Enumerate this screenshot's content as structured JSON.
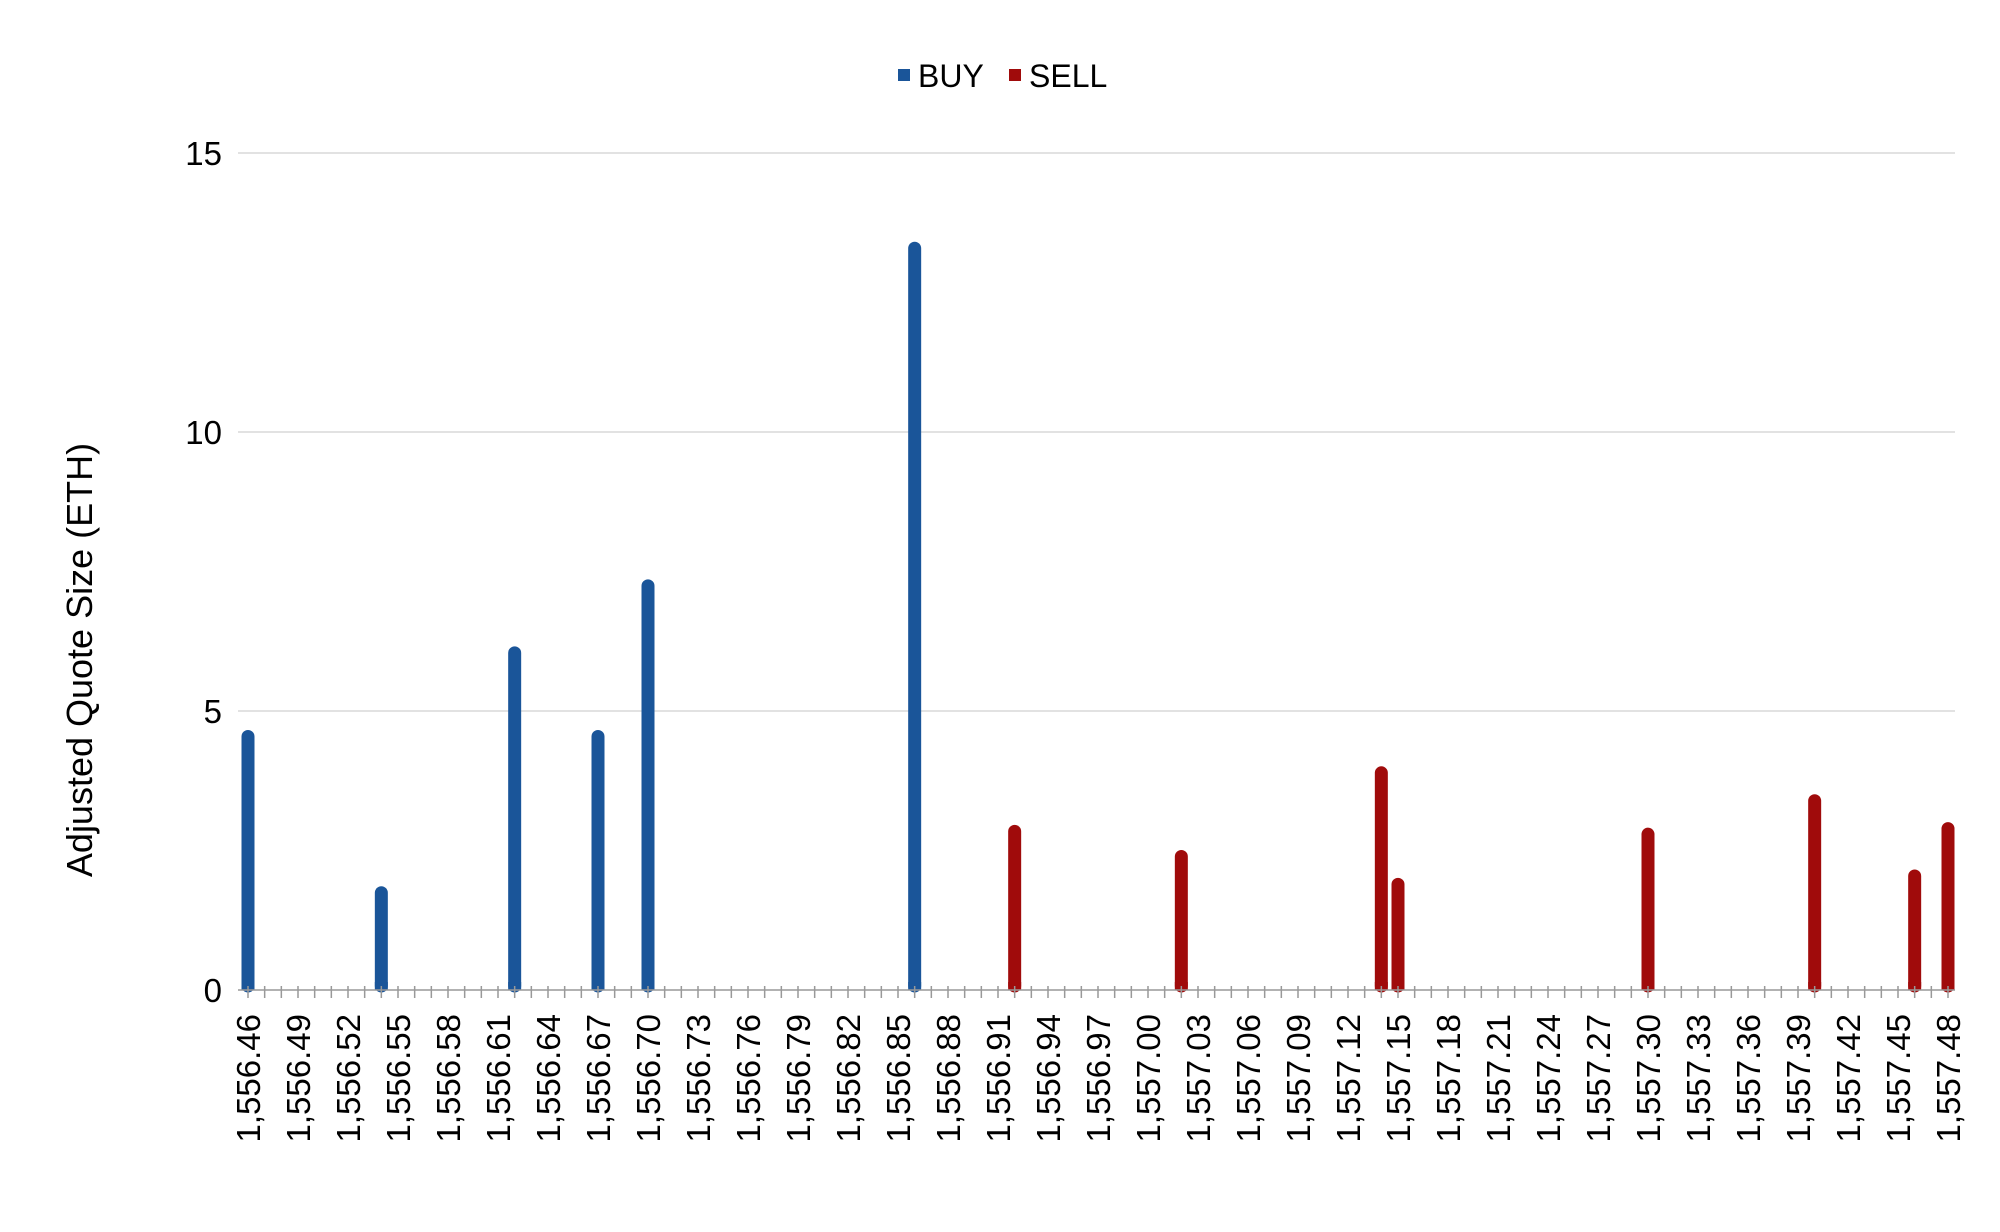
{
  "chart_data": {
    "type": "bar",
    "title": "",
    "xlabel": "",
    "ylabel": "Adjusted Quote Size (ETH)",
    "ylim": [
      0,
      15
    ],
    "yticks": [
      0,
      5,
      10,
      15
    ],
    "grid": true,
    "legend_position": "top-center",
    "x_tick_labels": [
      "1,556.46",
      "1,556.49",
      "1,556.52",
      "1,556.55",
      "1,556.58",
      "1,556.61",
      "1,556.64",
      "1,556.67",
      "1,556.70",
      "1,556.73",
      "1,556.76",
      "1,556.79",
      "1,556.82",
      "1,556.85",
      "1,556.88",
      "1,556.91",
      "1,556.94",
      "1,556.97",
      "1,557.00",
      "1,557.03",
      "1,557.06",
      "1,557.09",
      "1,557.12",
      "1,557.15",
      "1,557.18",
      "1,557.21",
      "1,557.24",
      "1,557.27",
      "1,557.30",
      "1,557.33",
      "1,557.36",
      "1,557.39",
      "1,557.42",
      "1,557.45",
      "1,557.48"
    ],
    "x_range": [
      1556.46,
      1557.48
    ],
    "series": [
      {
        "name": "BUY",
        "color": "#1a5599",
        "points": [
          {
            "x": 1556.46,
            "value": 4.65
          },
          {
            "x": 1556.54,
            "value": 1.85
          },
          {
            "x": 1556.62,
            "value": 6.15
          },
          {
            "x": 1556.67,
            "value": 4.65
          },
          {
            "x": 1556.7,
            "value": 7.35
          },
          {
            "x": 1556.86,
            "value": 13.4
          }
        ]
      },
      {
        "name": "SELL",
        "color": "#a00b0b",
        "points": [
          {
            "x": 1556.92,
            "value": 2.95
          },
          {
            "x": 1557.02,
            "value": 2.5
          },
          {
            "x": 1557.14,
            "value": 4.0
          },
          {
            "x": 1557.15,
            "value": 2.0
          },
          {
            "x": 1557.3,
            "value": 2.9
          },
          {
            "x": 1557.4,
            "value": 3.5
          },
          {
            "x": 1557.46,
            "value": 2.15
          },
          {
            "x": 1557.48,
            "value": 3.0
          }
        ]
      }
    ]
  }
}
